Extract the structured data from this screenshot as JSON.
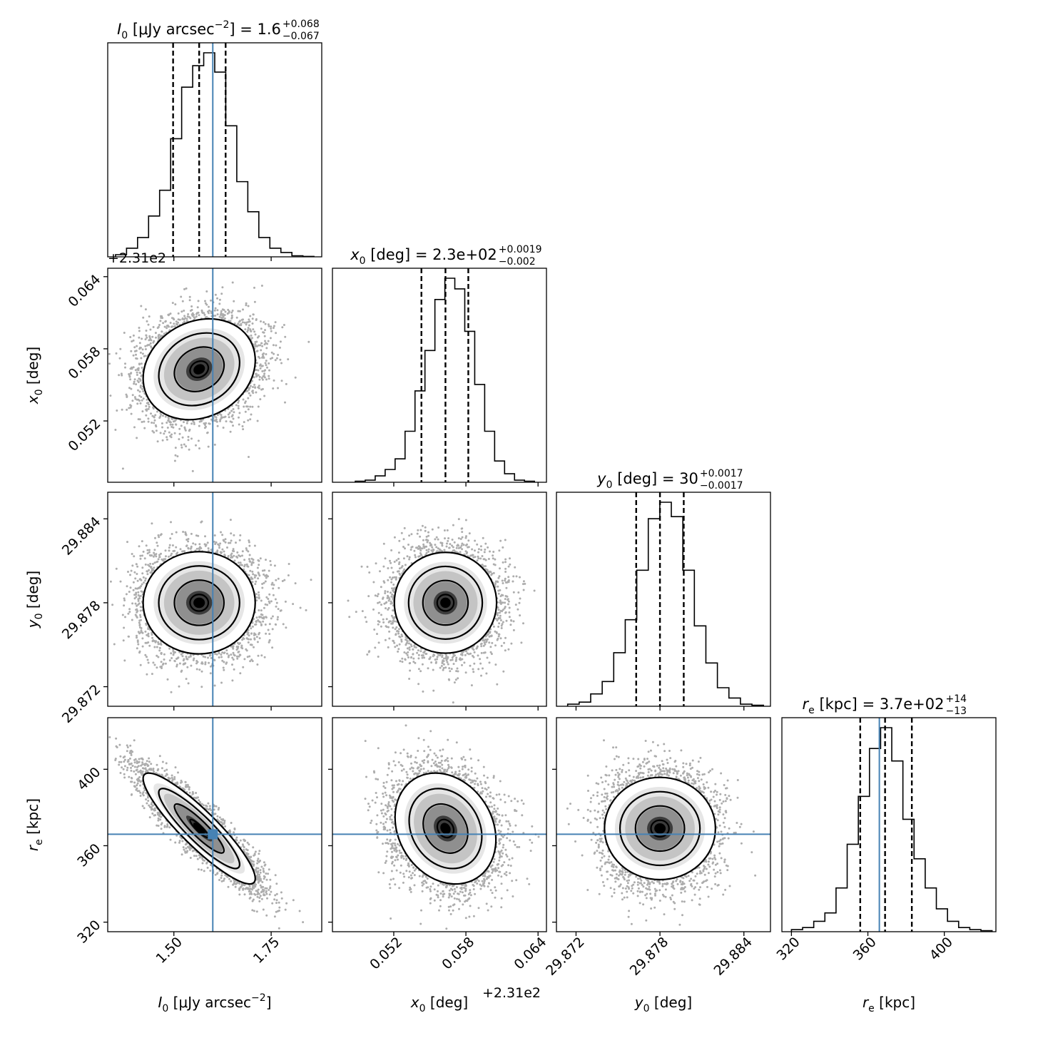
{
  "chart_data": {
    "type": "corner",
    "truth_color": "#4682b4",
    "parameters": [
      {
        "id": "I0",
        "label_main": "I",
        "label_sub": "0",
        "label_unit": " [μJy arcsec",
        "label_unit_sup": "−2",
        "label_unit_close": "]",
        "range": [
          1.33,
          1.88
        ],
        "ticks": [
          1.5,
          1.75
        ],
        "tick_labels": [
          "1.50",
          "1.75"
        ],
        "offset_text": "+2.31e2",
        "title_value": "1.6",
        "title_plus": "+0.068",
        "title_minus": "−0.067",
        "quantiles": [
          1.498,
          1.565,
          1.633
        ],
        "truth": 1.6,
        "hist_range": [
          1.35,
          1.86
        ],
        "hist": [
          0.01,
          0.04,
          0.09,
          0.19,
          0.31,
          0.55,
          0.79,
          0.89,
          0.95,
          0.86,
          0.61,
          0.35,
          0.21,
          0.09,
          0.04,
          0.02,
          0.005,
          0.002
        ]
      },
      {
        "id": "x0",
        "label_main": "x",
        "label_sub": "0",
        "label_unit": " [deg]",
        "label_unit_sup": "",
        "label_unit_close": "",
        "range": [
          0.0469,
          0.0647
        ],
        "ticks": [
          0.052,
          0.058,
          0.064
        ],
        "tick_labels": [
          "0.052",
          "0.058",
          "0.064"
        ],
        "offset_text": "+2.31e2",
        "title_value": "2.3e+02",
        "title_plus": "+0.0019",
        "title_minus": "−0.002",
        "quantiles": [
          0.0543,
          0.0563,
          0.0582
        ],
        "truth": null,
        "hist_range": [
          0.0488,
          0.0637
        ],
        "hist": [
          0.005,
          0.01,
          0.03,
          0.06,
          0.11,
          0.24,
          0.43,
          0.62,
          0.86,
          0.96,
          0.91,
          0.71,
          0.46,
          0.24,
          0.1,
          0.04,
          0.01,
          0.005
        ]
      },
      {
        "id": "y0",
        "label_main": "y",
        "label_sub": "0",
        "label_unit": " [deg]",
        "label_unit_sup": "",
        "label_unit_close": "",
        "range": [
          29.8706,
          29.8859
        ],
        "ticks": [
          29.872,
          29.878,
          29.884
        ],
        "tick_labels": [
          "29.872",
          "29.878",
          "29.884"
        ],
        "offset_text": "",
        "title_value": "30",
        "title_plus": "+0.0017",
        "title_minus": "−0.0017",
        "quantiles": [
          29.8763,
          29.878,
          29.8797
        ],
        "truth": null,
        "hist_range": [
          29.8714,
          29.8854
        ],
        "hist": [
          0.01,
          0.02,
          0.06,
          0.12,
          0.26,
          0.42,
          0.66,
          0.91,
          0.99,
          0.92,
          0.66,
          0.39,
          0.21,
          0.09,
          0.04,
          0.01,
          0.005
        ]
      },
      {
        "id": "re",
        "label_main": "r",
        "label_sub": "e",
        "label_unit": " [kpc]",
        "label_unit_sup": "",
        "label_unit_close": "",
        "range": [
          315,
          427
        ],
        "ticks": [
          320,
          360,
          400
        ],
        "tick_labels": [
          "320",
          "360",
          "400"
        ],
        "offset_text": "",
        "title_value": "3.7e+02",
        "title_plus": "+14",
        "title_minus": "−13",
        "quantiles": [
          356,
          369,
          383
        ],
        "truth": 366,
        "hist_range": [
          320,
          425
        ],
        "hist": [
          0.01,
          0.02,
          0.05,
          0.09,
          0.21,
          0.42,
          0.65,
          0.88,
          0.98,
          0.82,
          0.54,
          0.35,
          0.21,
          0.11,
          0.05,
          0.02,
          0.01,
          0.005
        ]
      }
    ],
    "pairs": [
      {
        "x": "I0",
        "y": "x0",
        "mean": [
          1.565,
          0.0563
        ],
        "sd": [
          0.067,
          0.00195
        ],
        "rho": 0.18
      },
      {
        "x": "I0",
        "y": "y0",
        "mean": [
          1.565,
          29.878
        ],
        "sd": [
          0.067,
          0.0017
        ],
        "rho": 0.0
      },
      {
        "x": "x0",
        "y": "y0",
        "mean": [
          0.0563,
          29.878
        ],
        "sd": [
          0.00195,
          0.0017
        ],
        "rho": 0.0
      },
      {
        "x": "I0",
        "y": "re",
        "mean": [
          1.565,
          369
        ],
        "sd": [
          0.067,
          13.5
        ],
        "rho": -0.9
      },
      {
        "x": "x0",
        "y": "re",
        "mean": [
          0.0563,
          369
        ],
        "sd": [
          0.00195,
          13.5
        ],
        "rho": -0.2
      },
      {
        "x": "y0",
        "y": "re",
        "mean": [
          29.878,
          369
        ],
        "sd": [
          0.0017,
          13.5
        ],
        "rho": 0.0
      }
    ]
  }
}
